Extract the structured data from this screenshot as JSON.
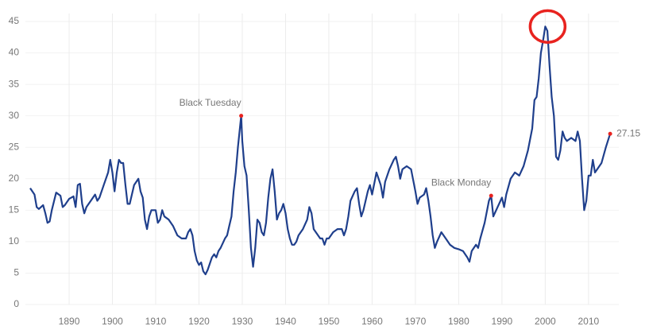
{
  "chart_data": {
    "type": "line",
    "series": [
      {
        "color": "#1f3f8c",
        "x": [
          1881,
          1882,
          1882.5,
          1883,
          1884,
          1884.5,
          1885,
          1885.5,
          1886,
          1887,
          1888,
          1888.5,
          1889,
          1890,
          1891,
          1891.5,
          1892,
          1892.5,
          1893,
          1893.5,
          1894,
          1895,
          1896,
          1896.5,
          1897,
          1898,
          1899,
          1899.5,
          1900,
          1900.5,
          1901,
          1901.5,
          1902,
          1902.5,
          1903,
          1903.5,
          1904,
          1905,
          1906,
          1906.5,
          1907,
          1907.5,
          1908,
          1908.5,
          1909,
          1910,
          1910.5,
          1911,
          1911.5,
          1912,
          1913,
          1914,
          1915,
          1916,
          1917,
          1917.5,
          1918,
          1918.5,
          1919,
          1919.5,
          1920,
          1920.5,
          1921,
          1921.5,
          1922,
          1922.5,
          1923,
          1923.5,
          1924,
          1924.5,
          1925,
          1926,
          1926.5,
          1927,
          1927.5,
          1928,
          1928.5,
          1929,
          1929.75,
          1930,
          1930.5,
          1931,
          1931.5,
          1932,
          1932.5,
          1933,
          1933.5,
          1934,
          1934.5,
          1935,
          1935.5,
          1936,
          1936.5,
          1937,
          1937.5,
          1938,
          1938.5,
          1939,
          1939.5,
          1940,
          1940.5,
          1941,
          1941.5,
          1942,
          1942.5,
          1943,
          1944,
          1945,
          1945.5,
          1946,
          1946.5,
          1947,
          1948,
          1948.5,
          1949,
          1949.5,
          1950,
          1951,
          1952,
          1953,
          1953.5,
          1954,
          1954.5,
          1955,
          1956,
          1956.5,
          1957,
          1957.5,
          1958,
          1959,
          1959.5,
          1960,
          1961,
          1962,
          1962.5,
          1963,
          1964,
          1965,
          1965.5,
          1966,
          1966.5,
          1967,
          1968,
          1969,
          1970,
          1970.5,
          1971,
          1972,
          1972.5,
          1973,
          1973.5,
          1974,
          1974.5,
          1975,
          1976,
          1977,
          1978,
          1979,
          1980,
          1981,
          1982,
          1982.5,
          1983,
          1984,
          1984.5,
          1985,
          1986,
          1987,
          1987.5,
          1988,
          1989,
          1990,
          1990.5,
          1991,
          1992,
          1993,
          1994,
          1995,
          1996,
          1997,
          1997.5,
          1998,
          1998.5,
          1999,
          1999.5,
          2000,
          2000.5,
          2001,
          2001.5,
          2002,
          2002.5,
          2003,
          2003.5,
          2004,
          2004.5,
          2005,
          2006,
          2007,
          2007.5,
          2008,
          2008.5,
          2009,
          2009.5,
          2010,
          2010.5,
          2011,
          2011.5,
          2012,
          2013,
          2014,
          2015
        ],
        "values": [
          18.5,
          17.5,
          15.5,
          15.2,
          15.8,
          14.5,
          13,
          13.2,
          15,
          17.8,
          17.3,
          15.5,
          15.8,
          16.8,
          17.2,
          15.5,
          19,
          19.2,
          16,
          14.5,
          15.5,
          16.5,
          17.5,
          16.5,
          17,
          19,
          21,
          23,
          21,
          18,
          21,
          23,
          22.5,
          22.5,
          19,
          16,
          16,
          19,
          20,
          18,
          17,
          13.5,
          12,
          14,
          15,
          15,
          13,
          13.5,
          15,
          14,
          13.5,
          12.5,
          11,
          10.5,
          10.5,
          11.5,
          12,
          11,
          8.5,
          7,
          6.3,
          6.7,
          5.3,
          4.8,
          5.5,
          6.5,
          7.5,
          8,
          7.5,
          8.5,
          9,
          10.5,
          11,
          12.5,
          14,
          18,
          21,
          25,
          30,
          26,
          22,
          20.5,
          15,
          9,
          6,
          9,
          13.5,
          13,
          11.5,
          11,
          13,
          17,
          20,
          21.5,
          18,
          13.5,
          14.5,
          15,
          16,
          14.5,
          12,
          10.5,
          9.5,
          9.5,
          10,
          11,
          12,
          13.5,
          15.5,
          14.5,
          12,
          11.5,
          10.5,
          10.5,
          9.5,
          10.5,
          10.5,
          11.5,
          12,
          12,
          11,
          12,
          14,
          16.5,
          18,
          18.5,
          16,
          14,
          15,
          18,
          19,
          17.5,
          21,
          19,
          17,
          19.5,
          21.5,
          23,
          23.5,
          22,
          20,
          21.5,
          22,
          21.5,
          18,
          16,
          17,
          17.5,
          18.5,
          16.5,
          14,
          11,
          9,
          10,
          11.5,
          10.5,
          9.5,
          9,
          8.8,
          8.5,
          7.5,
          6.8,
          8.5,
          9.5,
          9,
          10.5,
          13,
          16.5,
          17.3,
          14,
          15.5,
          17,
          15.5,
          17.5,
          20,
          21,
          20.5,
          22,
          24.5,
          28,
          32.5,
          33,
          36,
          40,
          42,
          44.2,
          43.5,
          38,
          33,
          30,
          23.5,
          23,
          24.5,
          27.5,
          26.5,
          26,
          26.5,
          26,
          27.5,
          26,
          20,
          15,
          16.5,
          20.5,
          20.5,
          23,
          21,
          21.5,
          22.5,
          25,
          27.15
        ]
      }
    ],
    "xlim": [
      1881,
      2017
    ],
    "xticks": [
      1890,
      1900,
      1910,
      1920,
      1930,
      1940,
      1950,
      1960,
      1970,
      1980,
      1990,
      2000,
      2010
    ],
    "ylim": [
      0,
      45
    ],
    "yticks": [
      0,
      5,
      10,
      15,
      20,
      25,
      30,
      35,
      40,
      45
    ],
    "grid": true,
    "annotations": [
      {
        "text": "Black Tuesday",
        "x": 1929.75,
        "y": 30
      },
      {
        "text": "Black Monday",
        "x": 1987.5,
        "y": 17.3
      }
    ],
    "highlight": {
      "x": 2000,
      "y": 44.2
    },
    "marker_color": "#e8231f"
  }
}
